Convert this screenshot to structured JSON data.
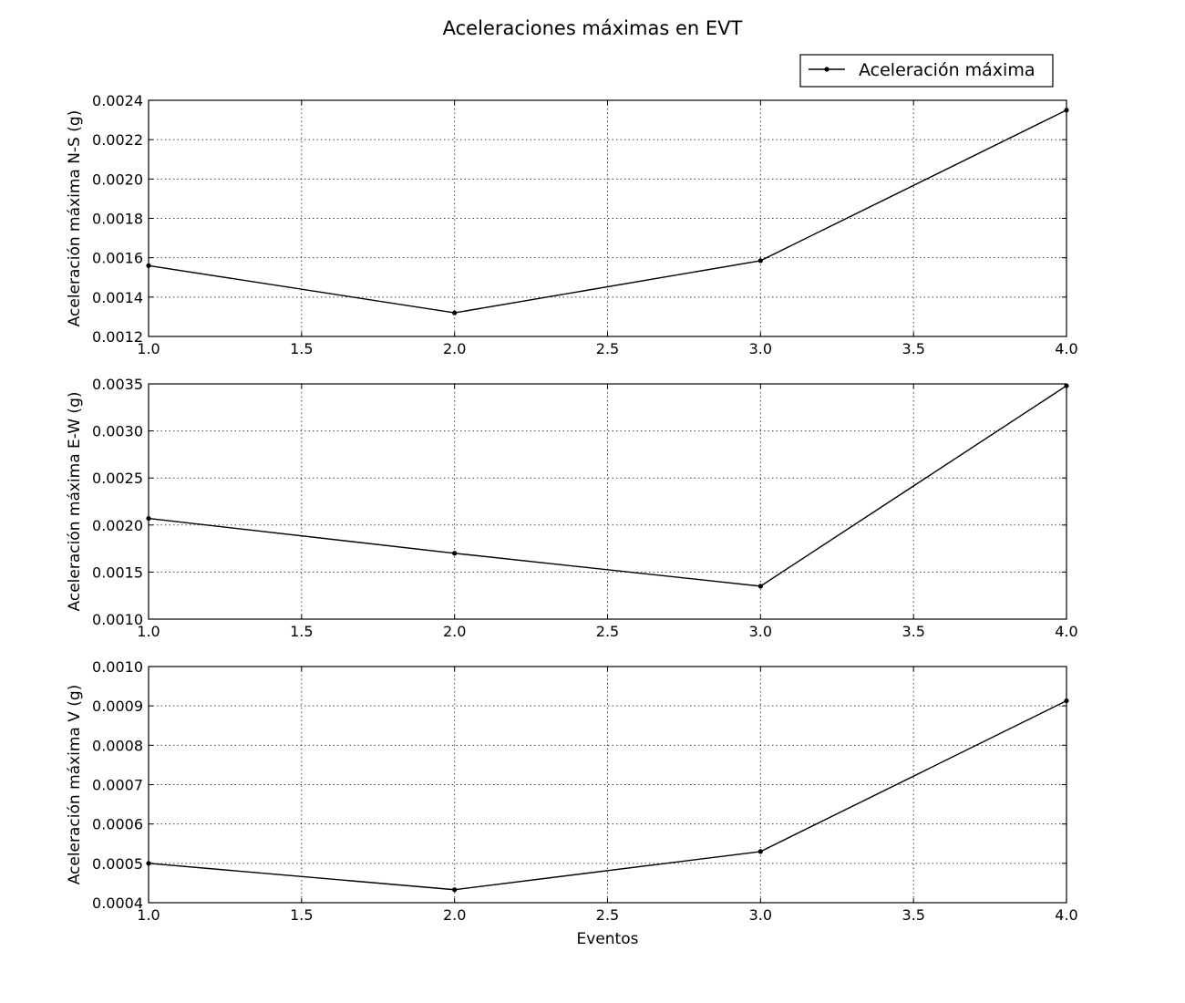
{
  "figure_title": "Aceleraciones máximas en EVT",
  "legend": {
    "label": "Aceleración máxima",
    "placement": "upper-right"
  },
  "chart_data": [
    {
      "type": "line",
      "title": "",
      "xlabel": "",
      "ylabel": "Aceleración máxima N-S (g)",
      "xlim": [
        1.0,
        4.0
      ],
      "ylim": [
        0.0012,
        0.0024
      ],
      "xticks": [
        "1.0",
        "1.5",
        "2.0",
        "2.5",
        "3.0",
        "3.5",
        "4.0"
      ],
      "yticks": [
        "0.0012",
        "0.0014",
        "0.0016",
        "0.0018",
        "0.0020",
        "0.0022",
        "0.0024"
      ],
      "grid": true,
      "x": [
        1,
        2,
        3,
        4
      ],
      "series": [
        {
          "name": "Aceleración máxima",
          "values": [
            0.00156,
            0.00132,
            0.001585,
            0.00235
          ]
        }
      ]
    },
    {
      "type": "line",
      "title": "",
      "xlabel": "",
      "ylabel": "Aceleración máxima E-W (g)",
      "xlim": [
        1.0,
        4.0
      ],
      "ylim": [
        0.001,
        0.0035
      ],
      "xticks": [
        "1.0",
        "1.5",
        "2.0",
        "2.5",
        "3.0",
        "3.5",
        "4.0"
      ],
      "yticks": [
        "0.0010",
        "0.0015",
        "0.0020",
        "0.0025",
        "0.0030",
        "0.0035"
      ],
      "grid": true,
      "x": [
        1,
        2,
        3,
        4
      ],
      "series": [
        {
          "name": "Aceleración máxima",
          "values": [
            0.00207,
            0.0017,
            0.00135,
            0.00348
          ]
        }
      ]
    },
    {
      "type": "line",
      "title": "",
      "xlabel": "Eventos",
      "ylabel": "Aceleración máxima V (g)",
      "xlim": [
        1.0,
        4.0
      ],
      "ylim": [
        0.0004,
        0.001
      ],
      "xticks": [
        "1.0",
        "1.5",
        "2.0",
        "2.5",
        "3.0",
        "3.5",
        "4.0"
      ],
      "yticks": [
        "0.0004",
        "0.0005",
        "0.0006",
        "0.0007",
        "0.0008",
        "0.0009",
        "0.0010"
      ],
      "grid": true,
      "x": [
        1,
        2,
        3,
        4
      ],
      "series": [
        {
          "name": "Aceleración máxima",
          "values": [
            0.0005,
            0.000433,
            0.00053,
            0.000913
          ]
        }
      ]
    }
  ]
}
